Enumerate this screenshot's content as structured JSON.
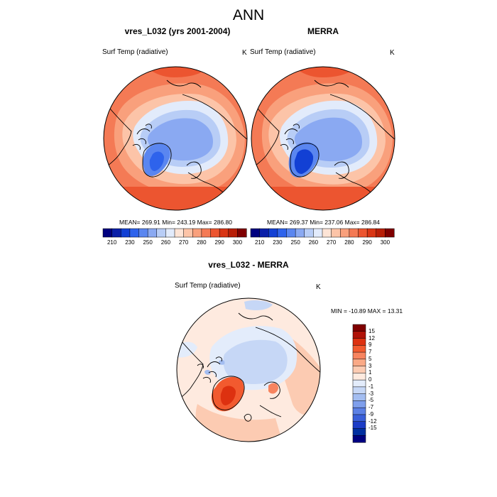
{
  "figure": {
    "title": "ANN"
  },
  "panels": [
    {
      "title": "vres_L032 (yrs 2001-2004)",
      "variable": "Surf Temp (radiative)",
      "units": "K",
      "stats": {
        "mean": "269.91",
        "min": "243.19",
        "max": "286.80"
      },
      "stats_text": "MEAN= 269.91  Min= 243.19  Max= 286.80"
    },
    {
      "title": "MERRA",
      "variable": "Surf Temp (radiative)",
      "units": "K",
      "stats": {
        "mean": "269.37",
        "min": "237.06",
        "max": "286.84"
      },
      "stats_text": "MEAN= 269.37  Min= 237.06  Max= 286.84"
    },
    {
      "title": "vres_L032 - MERRA",
      "variable": "Surf Temp (radiative)",
      "units": "K",
      "stats": {
        "min": "-10.89",
        "max": "13.31"
      },
      "stats_text": "MIN = -10.89 MAX =  13.31"
    }
  ],
  "colorbar_abs": {
    "colors": [
      "#00007f",
      "#0a1fa8",
      "#1240d4",
      "#2e63ec",
      "#5a86f0",
      "#8aa9f2",
      "#b8cdf6",
      "#e2ebfb",
      "#fde4d6",
      "#fcc4a8",
      "#f9a07c",
      "#f47a55",
      "#ec5530",
      "#d93514",
      "#b81e06",
      "#7f0000"
    ],
    "tick_labels": [
      "210",
      "230",
      "250",
      "260",
      "270",
      "280",
      "290",
      "300"
    ]
  },
  "colorbar_diff": {
    "colors": [
      "#800000",
      "#b01208",
      "#dd3110",
      "#f25a2f",
      "#f7845f",
      "#faa986",
      "#fccbb2",
      "#feeadf",
      "#e3ecfb",
      "#c6d7f6",
      "#a3bdf1",
      "#7f9fec",
      "#5c80e5",
      "#3a5fd9",
      "#1c3cc6",
      "#002fa0",
      "#000080"
    ],
    "tick_labels": [
      "15",
      "12",
      "9",
      "7",
      "5",
      "3",
      "1",
      "0",
      "-1",
      "-3",
      "-5",
      "-7",
      "-9",
      "-12",
      "-15"
    ]
  },
  "chart_data": [
    {
      "type": "heatmap",
      "title": "vres_L032 (yrs 2001-2004)",
      "projection": "north polar stereographic",
      "variable": "Surf Temp (radiative)",
      "units": "K",
      "mean": 269.91,
      "min": 243.19,
      "max": 286.8,
      "levels": [
        210,
        230,
        250,
        260,
        270,
        280,
        290,
        300
      ]
    },
    {
      "type": "heatmap",
      "title": "MERRA",
      "projection": "north polar stereographic",
      "variable": "Surf Temp (radiative)",
      "units": "K",
      "mean": 269.37,
      "min": 237.06,
      "max": 286.84,
      "levels": [
        210,
        230,
        250,
        260,
        270,
        280,
        290,
        300
      ]
    },
    {
      "type": "heatmap",
      "title": "vres_L032 - MERRA",
      "projection": "north polar stereographic",
      "variable": "Surf Temp (radiative)",
      "units": "K",
      "min": -10.89,
      "max": 13.31,
      "levels": [
        15,
        12,
        9,
        7,
        5,
        3,
        1,
        0,
        -1,
        -3,
        -5,
        -7,
        -9,
        -12,
        -15
      ]
    }
  ]
}
